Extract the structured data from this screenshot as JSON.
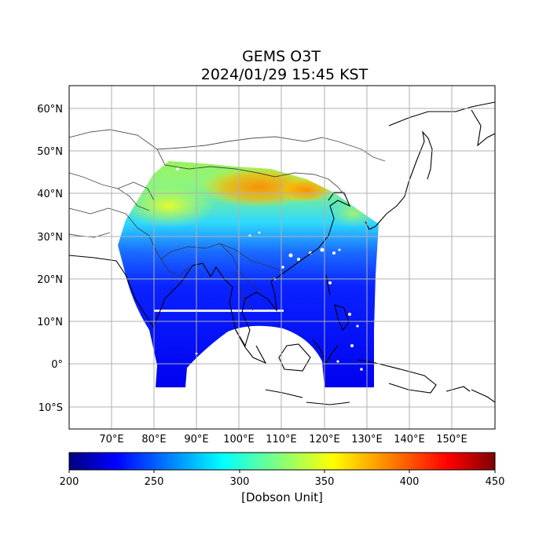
{
  "title": {
    "line1": "GEMS O3T",
    "line2": "2024/01/29 15:45 KST"
  },
  "map": {
    "lat_ticks": [
      "60°N",
      "50°N",
      "40°N",
      "30°N",
      "20°N",
      "10°N",
      "0°",
      "10°S"
    ],
    "lon_ticks": [
      "70°E",
      "80°E",
      "90°E",
      "100°E",
      "110°E",
      "120°E",
      "130°E",
      "140°E",
      "150°E"
    ],
    "grid": true
  },
  "colorbar": {
    "ticks": [
      "200",
      "250",
      "300",
      "350",
      "400",
      "450"
    ],
    "label": "[Dobson Unit]",
    "range": [
      200,
      450
    ],
    "colormap": "jet"
  }
}
